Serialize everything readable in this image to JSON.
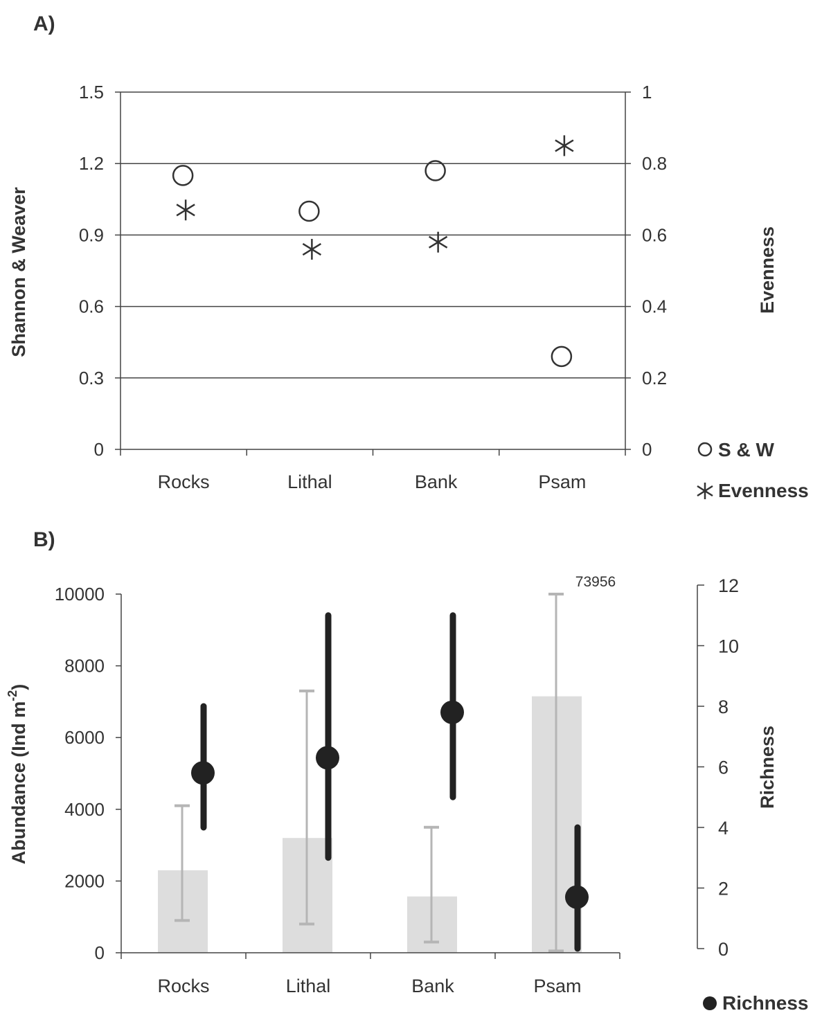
{
  "chart_data": [
    {
      "panel": "A)",
      "type": "scatter",
      "categories": [
        "Rocks",
        "Lithal",
        "Bank",
        "Psam"
      ],
      "ylabel": "Shannon & Weaver",
      "y2label": "Evenness",
      "ylim": [
        0,
        1.5
      ],
      "y2lim": [
        0,
        1
      ],
      "yticks": [
        "0",
        "0.3",
        "0.6",
        "0.9",
        "1.2",
        "1.5"
      ],
      "y2ticks": [
        "0",
        "0.2",
        "0.4",
        "0.6",
        "0.8",
        "1"
      ],
      "grid": true,
      "series": [
        {
          "name": "S & W",
          "axis": "left",
          "marker": "open-circle",
          "values": [
            1.15,
            1.0,
            1.17,
            0.39
          ]
        },
        {
          "name": "Evenness",
          "axis": "right",
          "marker": "asterisk",
          "values": [
            0.67,
            0.56,
            0.58,
            0.85
          ]
        }
      ],
      "legend_position": "bottom-right"
    },
    {
      "panel": "B)",
      "type": "bar",
      "categories": [
        "Rocks",
        "Lithal",
        "Bank",
        "Psam"
      ],
      "ylabel_main": "Abundance (Ind m",
      "ylabel_sup": "-2",
      "ylabel_tail": ")",
      "y2label": "Richness",
      "ylim": [
        0,
        10000
      ],
      "y2lim": [
        0,
        12
      ],
      "yticks": [
        "0",
        "2000",
        "4000",
        "6000",
        "8000",
        "10000"
      ],
      "y2ticks": [
        "0",
        "2",
        "4",
        "6",
        "8",
        "10",
        "12"
      ],
      "grid": false,
      "annotation": "73956",
      "series": [
        {
          "axis": "left",
          "kind": "bar",
          "color": "#dddddd",
          "values": [
            2300,
            3200,
            1570,
            7150
          ],
          "err_low": [
            900,
            800,
            300,
            50
          ],
          "err_high": [
            4100,
            7300,
            3500,
            10000
          ]
        },
        {
          "name": "Richness",
          "axis": "right",
          "kind": "point",
          "color": "#222222",
          "values": [
            5.8,
            6.3,
            7.8,
            1.7
          ],
          "err_low": [
            4.0,
            3.0,
            5.0,
            0.0
          ],
          "err_high": [
            8.0,
            11.0,
            11.0,
            4.0
          ]
        }
      ],
      "legend_position": "bottom-right"
    }
  ]
}
